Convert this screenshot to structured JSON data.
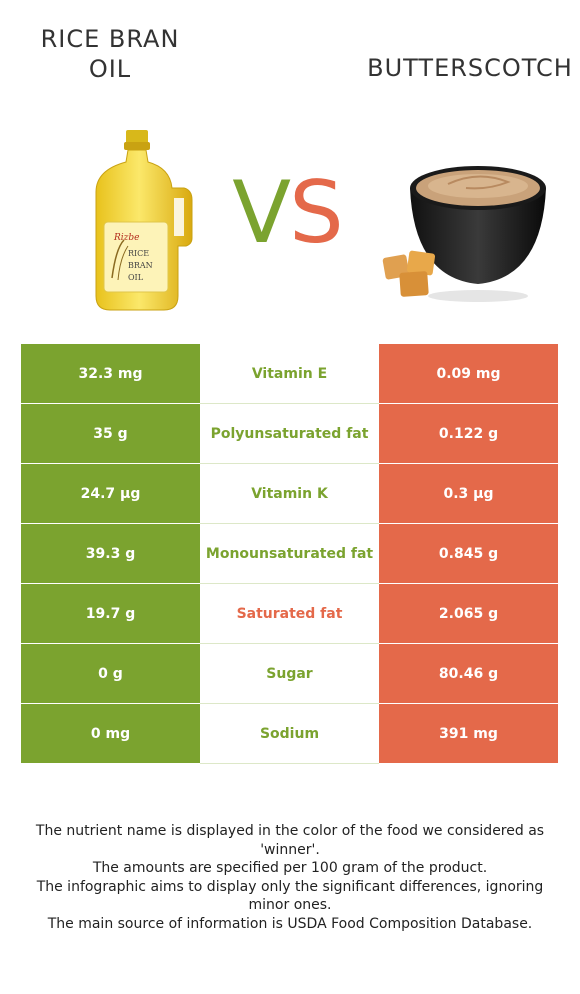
{
  "header": {
    "left_food": "RICE BRAN OIL",
    "left_food_line1": "RICE BRAN",
    "left_food_line2": "OIL",
    "vs_v": "V",
    "vs_s": "S",
    "right_food": "BUTTERSCOTCH"
  },
  "images": {
    "left": "rice-bran-oil-bottle",
    "left_label_brand": "Rizbe",
    "left_label_line1": "RICE",
    "left_label_line2": "BRAN",
    "left_label_line3": "OIL",
    "right": "butterscotch-bowl"
  },
  "colors": {
    "left_winner": "#7ba32f",
    "right_winner": "#e4694a"
  },
  "rows": [
    {
      "nutrient": "Vitamin E",
      "left": "32.3 mg",
      "right": "0.09 mg",
      "winner": "left"
    },
    {
      "nutrient": "Polyunsaturated fat",
      "left": "35 g",
      "right": "0.122 g",
      "winner": "left"
    },
    {
      "nutrient": "Vitamin K",
      "left": "24.7 µg",
      "right": "0.3 µg",
      "winner": "left"
    },
    {
      "nutrient": "Monounsaturated fat",
      "left": "39.3 g",
      "right": "0.845 g",
      "winner": "left"
    },
    {
      "nutrient": "Saturated fat",
      "left": "19.7 g",
      "right": "2.065 g",
      "winner": "right"
    },
    {
      "nutrient": "Sugar",
      "left": "0 g",
      "right": "80.46 g",
      "winner": "left"
    },
    {
      "nutrient": "Sodium",
      "left": "0 mg",
      "right": "391 mg",
      "winner": "left"
    }
  ],
  "notes": [
    "The nutrient name is displayed in the color of the food we considered as 'winner'.",
    "The amounts are specified per 100 gram of the product.",
    "The infographic aims to display only the significant differences, ignoring minor ones.",
    "The main source of information is USDA Food Composition Database."
  ]
}
